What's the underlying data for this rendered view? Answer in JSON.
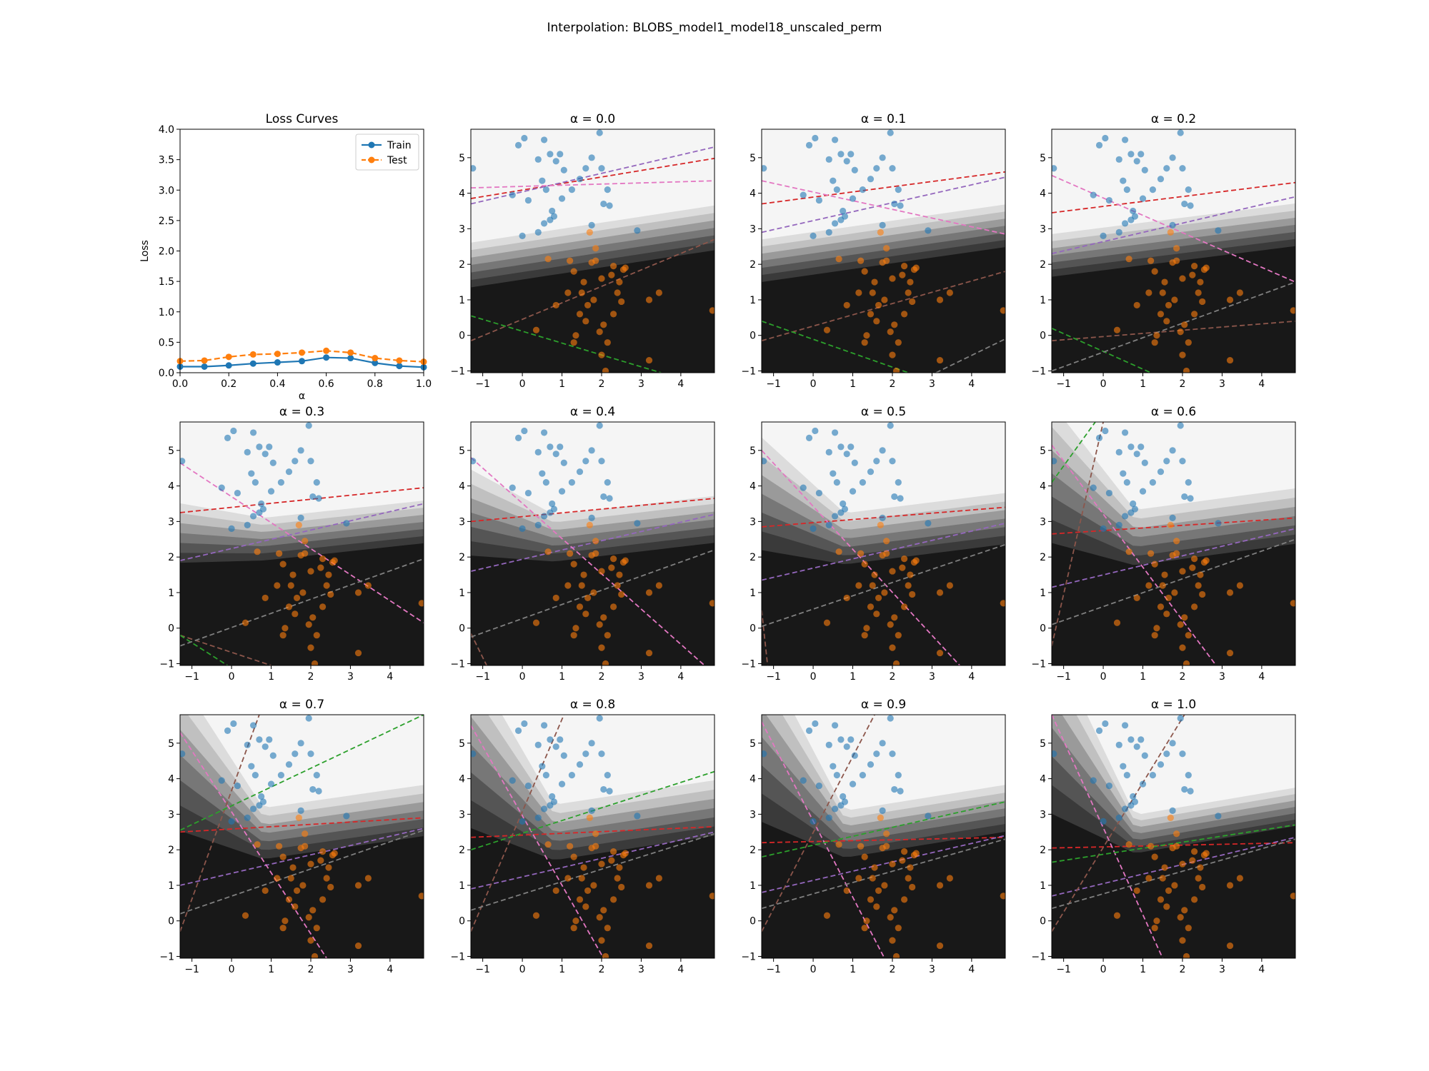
{
  "figure": {
    "suptitle": "Interpolation: BLOBS_model1_model18_unscaled_perm"
  },
  "colors": {
    "train": "#1f77b4",
    "test": "#ff7f0e",
    "region_levels": [
      "#f5f5f5",
      "#dcdcdc",
      "#c0c0c0",
      "#9a9a9a",
      "#777777",
      "#555555",
      "#3a3a3a",
      "#181818"
    ],
    "hyperplanes": {
      "red": "#d62728",
      "purple": "#9467bd",
      "pink": "#e377c2",
      "brown": "#8c564b",
      "green": "#2ca02c",
      "gray": "#7f7f7f"
    }
  },
  "chart_data": [
    {
      "type": "line",
      "title": "Loss Curves",
      "xlabel": "α",
      "ylabel": "Loss",
      "xlim": [
        0.0,
        1.0
      ],
      "ylim": [
        0.0,
        4.0
      ],
      "x_ticks": [
        "0.0",
        "0.2",
        "0.4",
        "0.6",
        "0.8",
        "1.0"
      ],
      "y_ticks": [
        "0.0",
        "0.5",
        "1.0",
        "1.5",
        "2.0",
        "2.5",
        "3.0",
        "3.5",
        "4.0"
      ],
      "legend_position": "top-right",
      "x": [
        0.0,
        0.1,
        0.2,
        0.3,
        0.4,
        0.5,
        0.6,
        0.7,
        0.8,
        0.9,
        1.0
      ],
      "series": [
        {
          "name": "Train",
          "values": [
            0.1,
            0.1,
            0.12,
            0.15,
            0.17,
            0.19,
            0.25,
            0.24,
            0.16,
            0.11,
            0.09
          ],
          "style": "solid"
        },
        {
          "name": "Test",
          "values": [
            0.19,
            0.2,
            0.26,
            0.3,
            0.31,
            0.33,
            0.36,
            0.33,
            0.24,
            0.2,
            0.18
          ],
          "style": "dashed"
        }
      ]
    },
    {
      "type": "scatter",
      "panel_kind": "decision_boundary",
      "xlim": [
        -1.3,
        4.85
      ],
      "ylim": [
        -1.05,
        5.8
      ],
      "x_ticks": [
        "−1",
        "0",
        "1",
        "2",
        "3",
        "4"
      ],
      "y_ticks": [
        "−1",
        "0",
        "1",
        "2",
        "3",
        "4",
        "5"
      ],
      "class0_points": [
        [
          -1.25,
          4.7
        ],
        [
          -0.1,
          5.35
        ],
        [
          0.05,
          5.55
        ],
        [
          0.55,
          5.5
        ],
        [
          0.95,
          5.1
        ],
        [
          1.75,
          5.0
        ],
        [
          1.95,
          5.7
        ],
        [
          0.7,
          5.1
        ],
        [
          -0.25,
          3.95
        ],
        [
          0.15,
          3.8
        ],
        [
          0.4,
          4.95
        ],
        [
          0.85,
          4.9
        ],
        [
          1.05,
          4.65
        ],
        [
          1.6,
          4.7
        ],
        [
          2.0,
          4.7
        ],
        [
          1.25,
          4.1
        ],
        [
          1.45,
          4.4
        ],
        [
          0.5,
          4.35
        ],
        [
          1.0,
          3.85
        ],
        [
          0.6,
          4.1
        ],
        [
          0.75,
          3.5
        ],
        [
          0.8,
          3.35
        ],
        [
          0.7,
          3.25
        ],
        [
          0.55,
          3.15
        ],
        [
          1.75,
          3.1
        ],
        [
          2.05,
          3.7
        ],
        [
          2.2,
          3.65
        ],
        [
          2.15,
          4.1
        ],
        [
          2.9,
          2.95
        ],
        [
          0.0,
          2.8
        ],
        [
          0.4,
          2.9
        ]
      ],
      "class1_points": [
        [
          0.65,
          2.15
        ],
        [
          1.85,
          2.45
        ],
        [
          1.7,
          2.9
        ],
        [
          1.75,
          2.05
        ],
        [
          1.2,
          2.1
        ],
        [
          2.0,
          1.6
        ],
        [
          2.25,
          1.7
        ],
        [
          2.3,
          1.95
        ],
        [
          2.55,
          1.85
        ],
        [
          2.6,
          1.9
        ],
        [
          1.3,
          1.8
        ],
        [
          1.55,
          1.5
        ],
        [
          2.45,
          1.5
        ],
        [
          1.15,
          1.2
        ],
        [
          1.5,
          1.2
        ],
        [
          2.4,
          1.2
        ],
        [
          0.85,
          0.85
        ],
        [
          1.8,
          1.0
        ],
        [
          2.5,
          0.95
        ],
        [
          3.2,
          1.0
        ],
        [
          3.45,
          1.2
        ],
        [
          1.45,
          0.6
        ],
        [
          1.6,
          0.4
        ],
        [
          2.05,
          0.3
        ],
        [
          1.95,
          0.1
        ],
        [
          0.35,
          0.15
        ],
        [
          1.35,
          0.0
        ],
        [
          1.3,
          -0.2
        ],
        [
          2.15,
          -0.2
        ],
        [
          2.0,
          -0.55
        ],
        [
          3.2,
          -0.7
        ],
        [
          2.1,
          -1.0
        ],
        [
          1.65,
          0.85
        ],
        [
          2.3,
          0.6
        ],
        [
          4.8,
          0.7
        ],
        [
          1.85,
          2.1
        ]
      ],
      "panels": [
        {
          "title": "α = 0.0"
        },
        {
          "title": "α = 0.1"
        },
        {
          "title": "α = 0.2"
        },
        {
          "title": "α = 0.3"
        },
        {
          "title": "α = 0.4"
        },
        {
          "title": "α = 0.5"
        },
        {
          "title": "α = 0.6"
        },
        {
          "title": "α = 0.7"
        },
        {
          "title": "α = 0.8"
        },
        {
          "title": "α = 0.9"
        },
        {
          "title": "α = 1.0"
        }
      ],
      "hyperplanes_by_panel": [
        [
          [
            "red",
            -1.3,
            3.85,
            4.85,
            4.98
          ],
          [
            "purple",
            -1.3,
            3.7,
            4.85,
            5.3
          ],
          [
            "pink",
            -1.3,
            4.15,
            4.85,
            4.35
          ],
          [
            "brown",
            -1.3,
            -0.15,
            4.85,
            2.7
          ],
          [
            "green",
            -1.3,
            0.55,
            3.5,
            -1.05
          ]
        ],
        [
          [
            "red",
            -1.3,
            3.7,
            4.85,
            4.6
          ],
          [
            "purple",
            -1.3,
            2.9,
            4.85,
            4.45
          ],
          [
            "pink",
            -1.3,
            4.35,
            4.85,
            2.85
          ],
          [
            "brown",
            -1.3,
            -0.15,
            4.85,
            1.8
          ],
          [
            "green",
            -1.3,
            0.4,
            2.4,
            -1.05
          ],
          [
            "gray",
            3.1,
            -1.05,
            4.85,
            -0.1
          ]
        ],
        [
          [
            "red",
            -1.3,
            3.45,
            4.85,
            4.3
          ],
          [
            "purple",
            -1.3,
            2.3,
            4.85,
            3.9
          ],
          [
            "pink",
            -1.3,
            4.5,
            4.85,
            1.5
          ],
          [
            "brown",
            -1.3,
            -0.15,
            4.85,
            0.4
          ],
          [
            "green",
            -1.3,
            0.2,
            1.2,
            -1.05
          ],
          [
            "gray",
            -1.3,
            -1.0,
            4.85,
            1.5
          ]
        ],
        [
          [
            "red",
            -1.3,
            3.25,
            4.85,
            3.95
          ],
          [
            "purple",
            -1.3,
            1.9,
            4.85,
            3.5
          ],
          [
            "pink",
            -1.3,
            4.65,
            4.85,
            0.15
          ],
          [
            "brown",
            -1.3,
            -0.2,
            1.0,
            -1.05
          ],
          [
            "green",
            -1.3,
            -0.2,
            -0.1,
            -1.05
          ],
          [
            "gray",
            -1.3,
            -0.5,
            4.85,
            1.95
          ]
        ],
        [
          [
            "red",
            -1.3,
            3.0,
            4.85,
            3.65
          ],
          [
            "purple",
            -1.3,
            1.6,
            4.85,
            3.2
          ],
          [
            "pink",
            -1.3,
            4.8,
            4.6,
            -1.05
          ],
          [
            "brown",
            -1.3,
            -0.15,
            -0.9,
            -1.05
          ],
          [
            "gray",
            -1.3,
            -0.25,
            4.85,
            2.2
          ]
        ],
        [
          [
            "red",
            -1.3,
            2.85,
            4.85,
            3.4
          ],
          [
            "purple",
            -1.3,
            1.35,
            4.85,
            2.95
          ],
          [
            "pink",
            -1.3,
            5.0,
            3.7,
            -1.05
          ],
          [
            "brown",
            -1.3,
            0.5,
            -1.15,
            -1.05
          ],
          [
            "gray",
            -1.3,
            0.05,
            4.85,
            2.35
          ]
        ],
        [
          [
            "red",
            -1.3,
            2.65,
            4.85,
            3.1
          ],
          [
            "purple",
            -1.3,
            1.15,
            4.85,
            2.8
          ],
          [
            "pink",
            -1.3,
            5.15,
            2.85,
            -1.05
          ],
          [
            "brown",
            -1.3,
            -0.5,
            0.0,
            5.8
          ],
          [
            "green",
            -1.3,
            4.1,
            -0.2,
            5.8
          ],
          [
            "gray",
            -1.3,
            0.1,
            4.85,
            2.5
          ]
        ],
        [
          [
            "red",
            -1.3,
            2.5,
            4.85,
            2.9
          ],
          [
            "purple",
            -1.3,
            1.0,
            4.85,
            2.6
          ],
          [
            "pink",
            -1.3,
            5.3,
            2.4,
            -1.05
          ],
          [
            "brown",
            -1.3,
            -0.3,
            0.7,
            5.8
          ],
          [
            "green",
            -1.3,
            2.55,
            4.85,
            5.8
          ],
          [
            "gray",
            -1.3,
            0.2,
            4.85,
            2.55
          ]
        ],
        [
          [
            "red",
            -1.3,
            2.35,
            4.85,
            2.65
          ],
          [
            "purple",
            -1.3,
            0.9,
            4.85,
            2.5
          ],
          [
            "pink",
            -1.3,
            5.5,
            2.05,
            -1.05
          ],
          [
            "brown",
            -1.3,
            -0.3,
            1.05,
            5.8
          ],
          [
            "green",
            -1.3,
            2.0,
            4.85,
            4.2
          ],
          [
            "gray",
            -1.3,
            0.3,
            4.85,
            2.45
          ]
        ],
        [
          [
            "red",
            -1.3,
            2.2,
            4.85,
            2.35
          ],
          [
            "purple",
            -1.3,
            0.8,
            4.85,
            2.4
          ],
          [
            "pink",
            -1.3,
            5.6,
            1.8,
            -1.05
          ],
          [
            "brown",
            -1.3,
            -0.3,
            1.55,
            5.8
          ],
          [
            "green",
            -1.3,
            1.8,
            4.85,
            3.35
          ],
          [
            "gray",
            -1.3,
            0.35,
            4.85,
            2.3
          ]
        ],
        [
          [
            "red",
            -1.3,
            2.05,
            4.85,
            2.2
          ],
          [
            "purple",
            -1.3,
            0.7,
            4.85,
            2.35
          ],
          [
            "pink",
            -1.3,
            5.8,
            1.5,
            -1.05
          ],
          [
            "brown",
            -1.3,
            -0.3,
            2.05,
            5.8
          ],
          [
            "green",
            -1.3,
            1.65,
            4.85,
            2.7
          ],
          [
            "gray",
            -1.3,
            0.35,
            4.85,
            2.3
          ]
        ]
      ]
    }
  ]
}
